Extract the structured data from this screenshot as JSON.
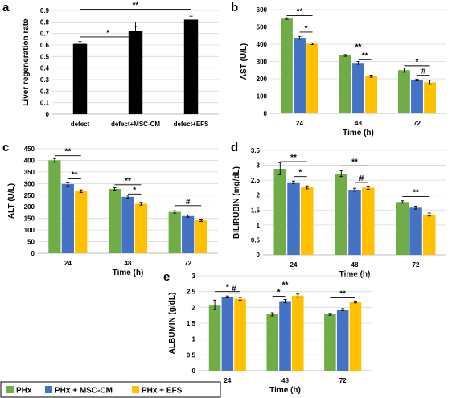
{
  "colors": {
    "green": "#70ad47",
    "blue": "#4472c4",
    "orange": "#ffc000",
    "black": "#000000"
  },
  "legend": {
    "entries": [
      {
        "name": "PHx",
        "color": "#70ad47"
      },
      {
        "name": "PHx + MSC-CM",
        "color": "#4472c4"
      },
      {
        "name": "PHx + EFS",
        "color": "#ffc000"
      }
    ]
  },
  "chart_data": [
    {
      "id": "a",
      "letter": "a",
      "type": "bar",
      "ylabel": "Liver regeneration rate",
      "xlabel": "",
      "ylim": [
        0,
        0.9
      ],
      "yticks": [
        0,
        0.1,
        0.2,
        0.3,
        0.4,
        0.5,
        0.6,
        0.7,
        0.8,
        0.9
      ],
      "categories": [
        "defect",
        "defect+MSC-CM",
        "defect+EFS"
      ],
      "series": [
        {
          "values": [
            0.61,
            0.72,
            0.82
          ],
          "errors": [
            0.02,
            0.04,
            0.03
          ],
          "color": "#000000"
        }
      ],
      "annotations": [
        {
          "text": "*",
          "from": [
            0,
            0
          ],
          "to": [
            1,
            0
          ],
          "y": 0.67
        },
        {
          "text": "**",
          "from": [
            0,
            0
          ],
          "to": [
            2,
            0
          ],
          "y": 0.91
        }
      ]
    },
    {
      "id": "b",
      "letter": "b",
      "type": "bar",
      "ylabel": "AST (U/L)",
      "xlabel": "Time (h)",
      "ylim": [
        0,
        600
      ],
      "yticks": [
        0,
        100,
        200,
        300,
        400,
        500,
        600
      ],
      "categories": [
        "24",
        "48",
        "72"
      ],
      "series": [
        {
          "name": "PHx",
          "values": [
            548,
            335,
            250
          ],
          "errors": [
            5,
            5,
            12
          ],
          "color": "#70ad47"
        },
        {
          "name": "PHx + MSC-CM",
          "values": [
            437,
            292,
            193
          ],
          "errors": [
            8,
            8,
            5
          ],
          "color": "#4472c4"
        },
        {
          "name": "PHx + EFS",
          "values": [
            403,
            215,
            180
          ],
          "errors": [
            5,
            6,
            12
          ],
          "color": "#ffc000"
        }
      ],
      "annotations": [
        {
          "text": "**",
          "from": [
            0,
            0
          ],
          "to": [
            0,
            2
          ],
          "y": 565
        },
        {
          "text": "*",
          "from": [
            0,
            1
          ],
          "to": [
            0,
            2
          ],
          "y": 470
        },
        {
          "text": "**",
          "from": [
            1,
            0
          ],
          "to": [
            1,
            2
          ],
          "y": 360
        },
        {
          "text": "**",
          "from": [
            1,
            1
          ],
          "to": [
            1,
            2
          ],
          "y": 310
        },
        {
          "text": "*",
          "from": [
            2,
            0
          ],
          "to": [
            2,
            2
          ],
          "y": 275
        },
        {
          "text": "#",
          "from": [
            2,
            1
          ],
          "to": [
            2,
            2
          ],
          "y": 220
        }
      ]
    },
    {
      "id": "c",
      "letter": "c",
      "type": "bar",
      "ylabel": "ALT (U/L)",
      "xlabel": "Time (h)",
      "ylim": [
        0,
        450
      ],
      "yticks": [
        0,
        50,
        100,
        150,
        200,
        250,
        300,
        350,
        400,
        450
      ],
      "categories": [
        "24",
        "48",
        "72"
      ],
      "series": [
        {
          "name": "PHx",
          "values": [
            400,
            277,
            178
          ],
          "errors": [
            8,
            5,
            5
          ],
          "color": "#70ad47"
        },
        {
          "name": "PHx + MSC-CM",
          "values": [
            298,
            243,
            160
          ],
          "errors": [
            8,
            7,
            5
          ],
          "color": "#4472c4"
        },
        {
          "name": "PHx + EFS",
          "values": [
            267,
            213,
            142
          ],
          "errors": [
            6,
            6,
            5
          ],
          "color": "#ffc000"
        }
      ],
      "annotations": [
        {
          "text": "**",
          "from": [
            0,
            0
          ],
          "to": [
            0,
            2
          ],
          "y": 420
        },
        {
          "text": "**",
          "from": [
            0,
            1
          ],
          "to": [
            0,
            2
          ],
          "y": 320
        },
        {
          "text": "**",
          "from": [
            1,
            0
          ],
          "to": [
            1,
            2
          ],
          "y": 295
        },
        {
          "text": "*",
          "from": [
            1,
            1
          ],
          "to": [
            1,
            2
          ],
          "y": 255
        },
        {
          "text": "#",
          "from": [
            2,
            0
          ],
          "to": [
            2,
            2
          ],
          "y": 205
        }
      ]
    },
    {
      "id": "d",
      "letter": "d",
      "type": "bar",
      "ylabel": "BILIRUBIN (mg/dL)",
      "xlabel": "Time (h)",
      "ylim": [
        0,
        3.5
      ],
      "yticks": [
        0,
        0.5,
        1,
        1.5,
        2,
        2.5,
        3,
        3.5
      ],
      "categories": [
        "24",
        "48",
        "72"
      ],
      "series": [
        {
          "name": "PHx",
          "values": [
            2.88,
            2.72,
            1.77
          ],
          "errors": [
            0.2,
            0.1,
            0.04
          ],
          "color": "#70ad47"
        },
        {
          "name": "PHx + MSC-CM",
          "values": [
            2.43,
            2.18,
            1.58
          ],
          "errors": [
            0.04,
            0.05,
            0.05
          ],
          "color": "#4472c4"
        },
        {
          "name": "PHx + EFS",
          "values": [
            2.26,
            2.25,
            1.35
          ],
          "errors": [
            0.05,
            0.05,
            0.05
          ],
          "color": "#ffc000"
        }
      ],
      "annotations": [
        {
          "text": "**",
          "from": [
            0,
            0
          ],
          "to": [
            0,
            2
          ],
          "y": 3.12
        },
        {
          "text": "*",
          "from": [
            0,
            1
          ],
          "to": [
            0,
            2
          ],
          "y": 2.62
        },
        {
          "text": "**",
          "from": [
            1,
            0
          ],
          "to": [
            1,
            2
          ],
          "y": 2.98
        },
        {
          "text": "#",
          "from": [
            1,
            1
          ],
          "to": [
            1,
            2
          ],
          "y": 2.42
        },
        {
          "text": "**",
          "from": [
            2,
            0
          ],
          "to": [
            2,
            2
          ],
          "y": 1.95
        }
      ]
    },
    {
      "id": "e",
      "letter": "e",
      "type": "bar",
      "ylabel": "ALBUMIN (g/dL)",
      "xlabel": "Time (h)",
      "ylim": [
        0,
        3
      ],
      "yticks": [
        0,
        0.5,
        1,
        1.5,
        2,
        2.5,
        3
      ],
      "categories": [
        "24",
        "48",
        "72"
      ],
      "series": [
        {
          "name": "PHx",
          "values": [
            2.08,
            1.78,
            1.78
          ],
          "errors": [
            0.15,
            0.05,
            0.03
          ],
          "color": "#70ad47"
        },
        {
          "name": "PHx + MSC-CM",
          "values": [
            2.33,
            2.2,
            1.93
          ],
          "errors": [
            0.03,
            0.05,
            0.03
          ],
          "color": "#4472c4"
        },
        {
          "name": "PHx + EFS",
          "values": [
            2.27,
            2.37,
            2.17
          ],
          "errors": [
            0.04,
            0.05,
            0.03
          ],
          "color": "#ffc000"
        }
      ],
      "annotations": [
        {
          "text": "*",
          "from": [
            0,
            0
          ],
          "to": [
            0,
            2
          ],
          "y": 2.5
        },
        {
          "text": "#",
          "from": [
            0,
            1
          ],
          "to": [
            0,
            2
          ],
          "y": 2.45
        },
        {
          "text": "**",
          "from": [
            1,
            0
          ],
          "to": [
            1,
            2
          ],
          "y": 2.58
        },
        {
          "text": "*",
          "from": [
            1,
            0
          ],
          "to": [
            1,
            1
          ],
          "y": 2.35
        },
        {
          "text": "**",
          "from": [
            2,
            0
          ],
          "to": [
            2,
            2
          ],
          "y": 2.3
        }
      ]
    }
  ]
}
